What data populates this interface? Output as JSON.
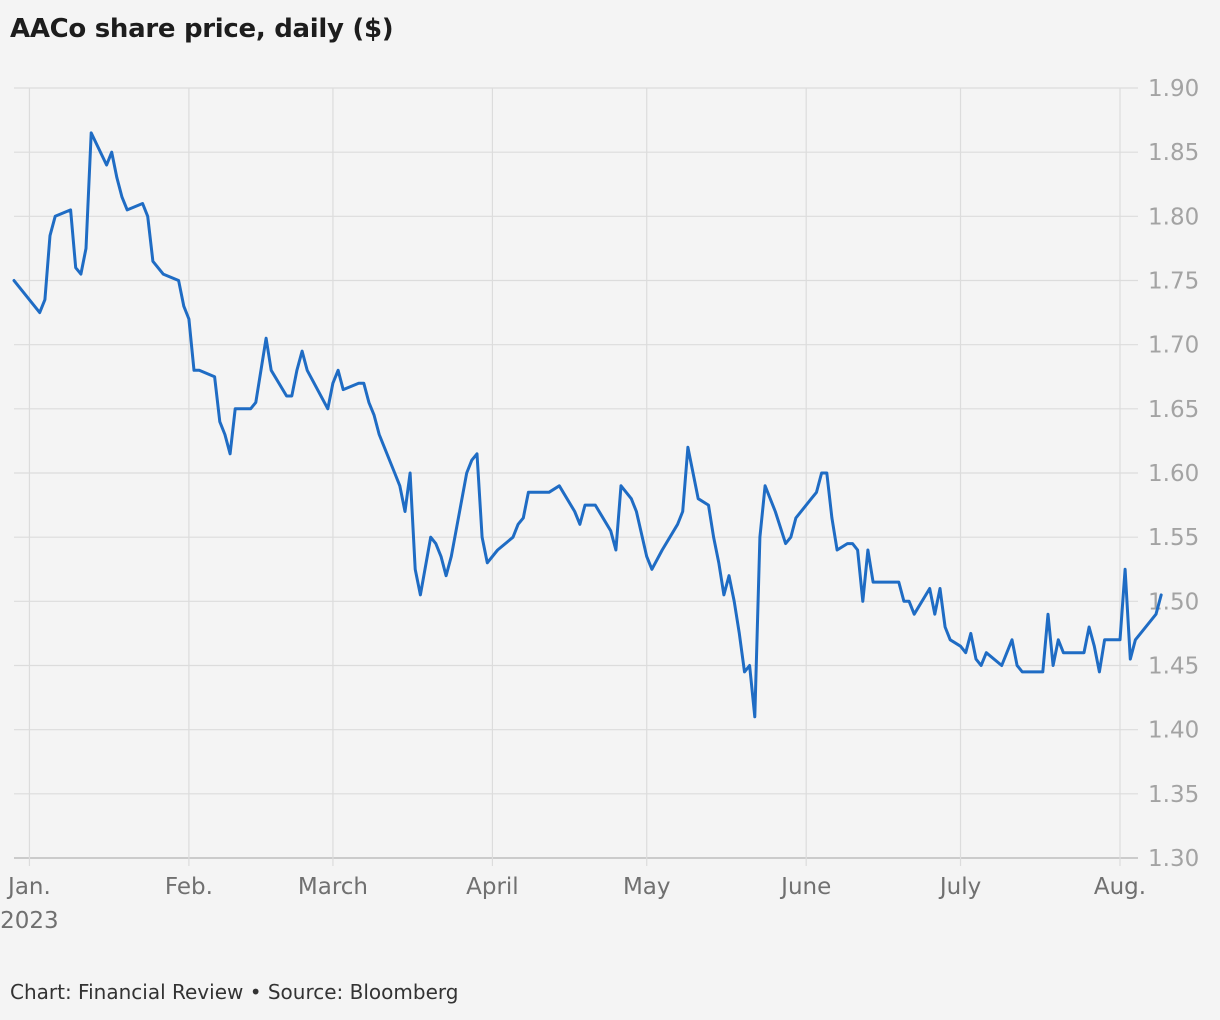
{
  "title": "AACo share price, daily ($)",
  "footer": "Chart: Financial Review • Source: Bloomberg",
  "colors": {
    "line": "#1f6cc4",
    "grid": "#dcdcdc",
    "axis": "#bdbdbd",
    "background": "#f4f4f4"
  },
  "chart_data": {
    "type": "line",
    "title": "AACo share price, daily ($)",
    "xlabel": "",
    "ylabel": "",
    "x_axis": "date",
    "xlim": [
      "2022-12-29",
      "2023-08-01"
    ],
    "ylim": [
      1.3,
      1.9
    ],
    "y_ticks": [
      "1.30",
      "1.35",
      "1.40",
      "1.45",
      "1.50",
      "1.55",
      "1.60",
      "1.65",
      "1.70",
      "1.75",
      "1.80",
      "1.85",
      "1.90"
    ],
    "y_axis_position": "right",
    "grid": true,
    "x_ticks": [
      {
        "date": "2023-01-01",
        "label": "Jan.",
        "sublabel": "2023"
      },
      {
        "date": "2023-02-01",
        "label": "Feb."
      },
      {
        "date": "2023-03-01",
        "label": "March"
      },
      {
        "date": "2023-04-01",
        "label": "April"
      },
      {
        "date": "2023-05-01",
        "label": "May"
      },
      {
        "date": "2023-06-01",
        "label": "June"
      },
      {
        "date": "2023-07-01",
        "label": "July"
      },
      {
        "date": "2023-08-01",
        "label": "Aug."
      }
    ],
    "series": [
      {
        "color": "#1f6cc4",
        "points": [
          [
            "2022-12-29",
            1.75
          ],
          [
            "2023-01-03",
            1.725
          ],
          [
            "2023-01-04",
            1.735
          ],
          [
            "2023-01-05",
            1.785
          ],
          [
            "2023-01-06",
            1.8
          ],
          [
            "2023-01-09",
            1.805
          ],
          [
            "2023-01-10",
            1.76
          ],
          [
            "2023-01-11",
            1.755
          ],
          [
            "2023-01-12",
            1.775
          ],
          [
            "2023-01-13",
            1.865
          ],
          [
            "2023-01-16",
            1.84
          ],
          [
            "2023-01-17",
            1.85
          ],
          [
            "2023-01-18",
            1.83
          ],
          [
            "2023-01-19",
            1.815
          ],
          [
            "2023-01-20",
            1.805
          ],
          [
            "2023-01-23",
            1.81
          ],
          [
            "2023-01-24",
            1.8
          ],
          [
            "2023-01-25",
            1.765
          ],
          [
            "2023-01-27",
            1.755
          ],
          [
            "2023-01-30",
            1.75
          ],
          [
            "2023-01-31",
            1.73
          ],
          [
            "2023-02-01",
            1.72
          ],
          [
            "2023-02-02",
            1.68
          ],
          [
            "2023-02-03",
            1.68
          ],
          [
            "2023-02-06",
            1.675
          ],
          [
            "2023-02-07",
            1.64
          ],
          [
            "2023-02-08",
            1.63
          ],
          [
            "2023-02-09",
            1.615
          ],
          [
            "2023-02-10",
            1.65
          ],
          [
            "2023-02-13",
            1.65
          ],
          [
            "2023-02-14",
            1.655
          ],
          [
            "2023-02-16",
            1.705
          ],
          [
            "2023-02-17",
            1.68
          ],
          [
            "2023-02-20",
            1.66
          ],
          [
            "2023-02-21",
            1.66
          ],
          [
            "2023-02-22",
            1.68
          ],
          [
            "2023-02-23",
            1.695
          ],
          [
            "2023-02-24",
            1.68
          ],
          [
            "2023-02-28",
            1.65
          ],
          [
            "2023-03-01",
            1.67
          ],
          [
            "2023-03-02",
            1.68
          ],
          [
            "2023-03-03",
            1.665
          ],
          [
            "2023-03-06",
            1.67
          ],
          [
            "2023-03-07",
            1.67
          ],
          [
            "2023-03-08",
            1.655
          ],
          [
            "2023-03-09",
            1.645
          ],
          [
            "2023-03-10",
            1.63
          ],
          [
            "2023-03-13",
            1.6
          ],
          [
            "2023-03-14",
            1.59
          ],
          [
            "2023-03-15",
            1.57
          ],
          [
            "2023-03-16",
            1.6
          ],
          [
            "2023-03-17",
            1.525
          ],
          [
            "2023-03-18",
            1.505
          ],
          [
            "2023-03-20",
            1.55
          ],
          [
            "2023-03-21",
            1.545
          ],
          [
            "2023-03-22",
            1.535
          ],
          [
            "2023-03-23",
            1.52
          ],
          [
            "2023-03-24",
            1.535
          ],
          [
            "2023-03-27",
            1.6
          ],
          [
            "2023-03-28",
            1.61
          ],
          [
            "2023-03-29",
            1.615
          ],
          [
            "2023-03-30",
            1.55
          ],
          [
            "2023-03-31",
            1.53
          ],
          [
            "2023-04-02",
            1.54
          ],
          [
            "2023-04-05",
            1.55
          ],
          [
            "2023-04-06",
            1.56
          ],
          [
            "2023-04-07",
            1.565
          ],
          [
            "2023-04-08",
            1.585
          ],
          [
            "2023-04-12",
            1.585
          ],
          [
            "2023-04-14",
            1.59
          ],
          [
            "2023-04-17",
            1.57
          ],
          [
            "2023-04-18",
            1.56
          ],
          [
            "2023-04-19",
            1.575
          ],
          [
            "2023-04-20",
            1.575
          ],
          [
            "2023-04-21",
            1.575
          ],
          [
            "2023-04-24",
            1.555
          ],
          [
            "2023-04-25",
            1.54
          ],
          [
            "2023-04-26",
            1.59
          ],
          [
            "2023-04-27",
            1.585
          ],
          [
            "2023-04-28",
            1.58
          ],
          [
            "2023-04-29",
            1.57
          ],
          [
            "2023-05-01",
            1.535
          ],
          [
            "2023-05-02",
            1.525
          ],
          [
            "2023-05-04",
            1.54
          ],
          [
            "2023-05-07",
            1.56
          ],
          [
            "2023-05-08",
            1.57
          ],
          [
            "2023-05-09",
            1.62
          ],
          [
            "2023-05-11",
            1.58
          ],
          [
            "2023-05-13",
            1.575
          ],
          [
            "2023-05-14",
            1.55
          ],
          [
            "2023-05-15",
            1.53
          ],
          [
            "2023-05-16",
            1.505
          ],
          [
            "2023-05-17",
            1.52
          ],
          [
            "2023-05-18",
            1.5
          ],
          [
            "2023-05-19",
            1.475
          ],
          [
            "2023-05-20",
            1.445
          ],
          [
            "2023-05-21",
            1.45
          ],
          [
            "2023-05-22",
            1.41
          ],
          [
            "2023-05-23",
            1.55
          ],
          [
            "2023-05-24",
            1.59
          ],
          [
            "2023-05-26",
            1.57
          ],
          [
            "2023-05-28",
            1.545
          ],
          [
            "2023-05-29",
            1.55
          ],
          [
            "2023-05-30",
            1.565
          ],
          [
            "2023-06-01",
            1.575
          ],
          [
            "2023-06-02",
            1.58
          ],
          [
            "2023-06-03",
            1.585
          ],
          [
            "2023-06-04",
            1.6
          ],
          [
            "2023-06-05",
            1.6
          ],
          [
            "2023-06-06",
            1.565
          ],
          [
            "2023-06-07",
            1.54
          ],
          [
            "2023-06-09",
            1.545
          ],
          [
            "2023-06-10",
            1.545
          ],
          [
            "2023-06-11",
            1.54
          ],
          [
            "2023-06-12",
            1.5
          ],
          [
            "2023-06-13",
            1.54
          ],
          [
            "2023-06-14",
            1.515
          ],
          [
            "2023-06-15",
            1.515
          ],
          [
            "2023-06-19",
            1.515
          ],
          [
            "2023-06-20",
            1.5
          ],
          [
            "2023-06-21",
            1.5
          ],
          [
            "2023-06-22",
            1.49
          ],
          [
            "2023-06-25",
            1.51
          ],
          [
            "2023-06-26",
            1.49
          ],
          [
            "2023-06-27",
            1.51
          ],
          [
            "2023-06-28",
            1.48
          ],
          [
            "2023-06-29",
            1.47
          ],
          [
            "2023-07-01",
            1.465
          ],
          [
            "2023-07-02",
            1.46
          ],
          [
            "2023-07-03",
            1.475
          ],
          [
            "2023-07-04",
            1.455
          ],
          [
            "2023-07-05",
            1.45
          ],
          [
            "2023-07-06",
            1.46
          ],
          [
            "2023-07-09",
            1.45
          ],
          [
            "2023-07-11",
            1.47
          ],
          [
            "2023-07-12",
            1.45
          ],
          [
            "2023-07-13",
            1.445
          ],
          [
            "2023-07-16",
            1.445
          ],
          [
            "2023-07-17",
            1.445
          ],
          [
            "2023-07-18",
            1.49
          ],
          [
            "2023-07-19",
            1.45
          ],
          [
            "2023-07-20",
            1.47
          ],
          [
            "2023-07-21",
            1.46
          ],
          [
            "2023-07-24",
            1.46
          ],
          [
            "2023-07-25",
            1.46
          ],
          [
            "2023-07-26",
            1.48
          ],
          [
            "2023-07-27",
            1.465
          ],
          [
            "2023-07-28",
            1.445
          ],
          [
            "2023-07-29",
            1.47
          ],
          [
            "2023-07-31",
            1.47
          ],
          [
            "2023-08-01",
            1.47
          ],
          [
            "2023-08-02",
            1.525
          ],
          [
            "2023-08-03",
            1.455
          ],
          [
            "2023-08-04",
            1.47
          ],
          [
            "2023-08-08",
            1.49
          ],
          [
            "2023-08-09",
            1.505
          ]
        ]
      }
    ]
  }
}
